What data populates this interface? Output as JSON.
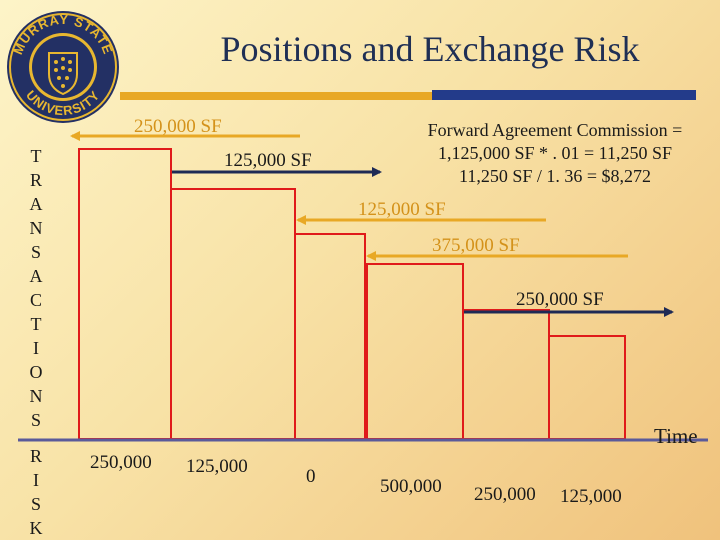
{
  "title": "Positions and Exchange Risk",
  "seal": {
    "text": "MURRAY STATE UNIVERSITY"
  },
  "side_labels": {
    "transactions": [
      "T",
      "R",
      "A",
      "N",
      "S",
      "A",
      "C",
      "T",
      "I",
      "O",
      "N",
      "S"
    ],
    "risk": [
      "R",
      "I",
      "S",
      "K"
    ]
  },
  "transactions": [
    {
      "label": "250,000 SF"
    },
    {
      "label": "125,000 SF"
    },
    {
      "label": "125,000 SF"
    },
    {
      "label": "375,000 SF"
    },
    {
      "label": "250,000 SF"
    }
  ],
  "commission": {
    "line1": "Forward Agreement Commission =",
    "line2": "1,125,000 SF * . 01 = 11,250 SF",
    "line3": "11,250 SF / 1. 36 = $8,272"
  },
  "axis": {
    "label": "Time"
  },
  "risk_values": [
    "250,000",
    "125,000",
    "0",
    "500,000",
    "250,000",
    "125,000"
  ],
  "colors": {
    "inflow": "#e8a825",
    "outflow": "#1e2a55",
    "block": "#e01a1a",
    "axis": "#5a5a9a"
  }
}
